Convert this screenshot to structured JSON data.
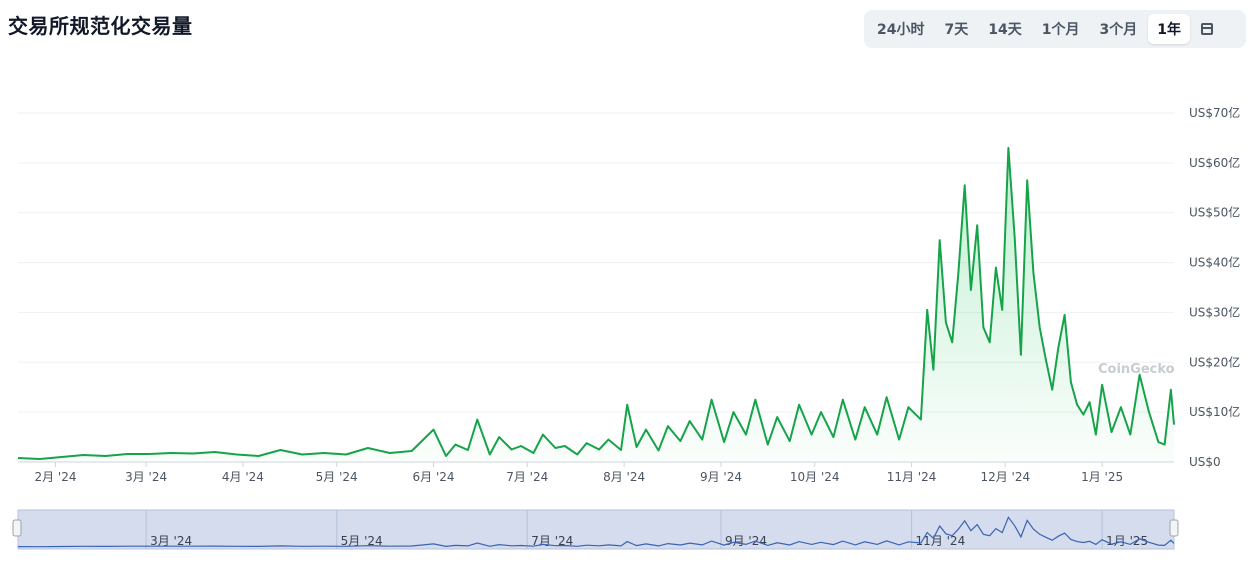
{
  "title": "交易所规范化交易量",
  "range_buttons": [
    {
      "label": "24小时",
      "active": false
    },
    {
      "label": "7天",
      "active": false
    },
    {
      "label": "14天",
      "active": false
    },
    {
      "label": "1个月",
      "active": false
    },
    {
      "label": "3个月",
      "active": false
    },
    {
      "label": "1年",
      "active": true
    }
  ],
  "watermark": "CoinGecko",
  "colors": {
    "line": "#16a34a",
    "area": "#dcfce7",
    "navigator_line": "#3b63b5",
    "navigator_bg": "#d4dced"
  },
  "chart_data": {
    "type": "area",
    "title": "",
    "xlabel": "",
    "ylabel": "",
    "y_unit": "亿 USD",
    "ylim": [
      0,
      70
    ],
    "y_ticks": [
      {
        "value": 0,
        "label": "US$0"
      },
      {
        "value": 10,
        "label": "US$10亿"
      },
      {
        "value": 20,
        "label": "US$20亿"
      },
      {
        "value": 30,
        "label": "US$30亿"
      },
      {
        "value": 40,
        "label": "US$40亿"
      },
      {
        "value": 50,
        "label": "US$50亿"
      },
      {
        "value": 60,
        "label": "US$60亿"
      },
      {
        "value": 70,
        "label": "US$70亿"
      }
    ],
    "xlim": [
      "2024-01-20",
      "2025-01-24"
    ],
    "x_ticks": [
      {
        "date": "2024-02-01",
        "label": "2月 '24"
      },
      {
        "date": "2024-03-01",
        "label": "3月 '24"
      },
      {
        "date": "2024-04-01",
        "label": "4月 '24"
      },
      {
        "date": "2024-05-01",
        "label": "5月 '24"
      },
      {
        "date": "2024-06-01",
        "label": "6月 '24"
      },
      {
        "date": "2024-07-01",
        "label": "7月 '24"
      },
      {
        "date": "2024-08-01",
        "label": "8月 '24"
      },
      {
        "date": "2024-09-01",
        "label": "9月 '24"
      },
      {
        "date": "2024-10-01",
        "label": "10月 '24"
      },
      {
        "date": "2024-11-01",
        "label": "11月 '24"
      },
      {
        "date": "2024-12-01",
        "label": "12月 '24"
      },
      {
        "date": "2025-01-01",
        "label": "1月 '25"
      }
    ],
    "navigator_ticks": [
      {
        "date": "2024-03-01",
        "label": "3月 '24"
      },
      {
        "date": "2024-05-01",
        "label": "5月 '24"
      },
      {
        "date": "2024-07-01",
        "label": "7月 '24"
      },
      {
        "date": "2024-09-01",
        "label": "9月 '24"
      },
      {
        "date": "2024-11-01",
        "label": "11月 '24"
      },
      {
        "date": "2025-01-01",
        "label": "1月 '25"
      }
    ],
    "grid": true,
    "legend": "none",
    "series": [
      {
        "x": [
          "2024-01-20",
          "2024-01-27",
          "2024-02-03",
          "2024-02-10",
          "2024-02-17",
          "2024-02-24",
          "2024-03-02",
          "2024-03-09",
          "2024-03-16",
          "2024-03-23",
          "2024-03-30",
          "2024-04-06",
          "2024-04-13",
          "2024-04-20",
          "2024-04-27",
          "2024-05-04",
          "2024-05-11",
          "2024-05-18",
          "2024-05-25",
          "2024-06-01",
          "2024-06-05",
          "2024-06-08",
          "2024-06-12",
          "2024-06-15",
          "2024-06-19",
          "2024-06-22",
          "2024-06-26",
          "2024-06-29",
          "2024-07-03",
          "2024-07-06",
          "2024-07-10",
          "2024-07-13",
          "2024-07-17",
          "2024-07-20",
          "2024-07-24",
          "2024-07-27",
          "2024-07-31",
          "2024-08-02",
          "2024-08-05",
          "2024-08-08",
          "2024-08-12",
          "2024-08-15",
          "2024-08-19",
          "2024-08-22",
          "2024-08-26",
          "2024-08-29",
          "2024-09-02",
          "2024-09-05",
          "2024-09-09",
          "2024-09-12",
          "2024-09-16",
          "2024-09-19",
          "2024-09-23",
          "2024-09-26",
          "2024-09-30",
          "2024-10-03",
          "2024-10-07",
          "2024-10-10",
          "2024-10-14",
          "2024-10-17",
          "2024-10-21",
          "2024-10-24",
          "2024-10-28",
          "2024-10-31",
          "2024-11-04",
          "2024-11-06",
          "2024-11-08",
          "2024-11-10",
          "2024-11-12",
          "2024-11-14",
          "2024-11-16",
          "2024-11-18",
          "2024-11-20",
          "2024-11-22",
          "2024-11-24",
          "2024-11-26",
          "2024-11-28",
          "2024-11-30",
          "2024-12-02",
          "2024-12-04",
          "2024-12-06",
          "2024-12-08",
          "2024-12-10",
          "2024-12-12",
          "2024-12-14",
          "2024-12-16",
          "2024-12-18",
          "2024-12-20",
          "2024-12-22",
          "2024-12-24",
          "2024-12-26",
          "2024-12-28",
          "2024-12-30",
          "2025-01-01",
          "2025-01-04",
          "2025-01-07",
          "2025-01-10",
          "2025-01-13",
          "2025-01-16",
          "2025-01-19",
          "2025-01-21",
          "2025-01-23",
          "2025-01-24"
        ],
        "y": [
          0.8,
          0.6,
          1.0,
          1.4,
          1.2,
          1.6,
          1.6,
          1.8,
          1.7,
          2.0,
          1.5,
          1.2,
          2.4,
          1.5,
          1.8,
          1.5,
          2.8,
          1.8,
          2.2,
          6.5,
          1.2,
          3.5,
          2.4,
          8.5,
          1.5,
          5.0,
          2.5,
          3.2,
          1.8,
          5.5,
          2.8,
          3.2,
          1.5,
          3.8,
          2.5,
          4.5,
          2.4,
          11.5,
          3.0,
          6.5,
          2.3,
          7.2,
          4.2,
          8.2,
          4.5,
          12.5,
          4.0,
          10.0,
          5.5,
          12.5,
          3.5,
          9.0,
          4.2,
          11.5,
          5.5,
          10.0,
          5.0,
          12.5,
          4.5,
          11.0,
          5.5,
          13.0,
          4.5,
          11.0,
          8.5,
          30.5,
          18.5,
          44.5,
          28.0,
          24.0,
          38.0,
          55.5,
          34.5,
          47.5,
          27.0,
          24.0,
          39.0,
          30.5,
          63.0,
          45.0,
          21.5,
          56.5,
          38.0,
          27.0,
          20.5,
          14.5,
          23.0,
          29.5,
          16.0,
          11.5,
          9.5,
          12.0,
          5.5,
          15.5,
          6.0,
          11.0,
          5.5,
          17.5,
          10.0,
          4.0,
          3.5,
          14.5,
          7.5
        ]
      }
    ]
  }
}
